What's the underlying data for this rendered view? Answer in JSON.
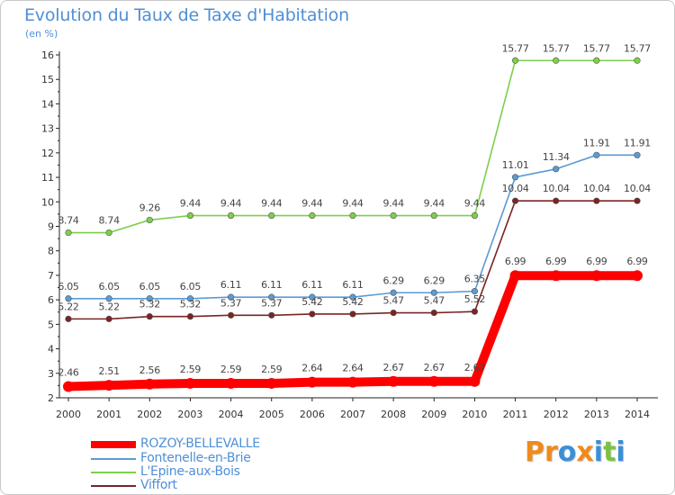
{
  "header": {
    "title": "Evolution du Taux de Taxe d'Habitation",
    "unit": "(en %)"
  },
  "logo": {
    "text": "Proxiti",
    "letters": [
      "P",
      "r",
      "o",
      "x",
      "i",
      "t",
      "i"
    ],
    "colors": [
      "#f08a1c",
      "#f08a1c",
      "#3b8fd8",
      "#f08a1c",
      "#3b8fd8",
      "#7cc242",
      "#3b8fd8"
    ]
  },
  "chart_data": {
    "type": "line",
    "title": "Evolution du Taux de Taxe d'Habitation",
    "ylabel": "(en %)",
    "xlabel": "",
    "x": [
      "2000",
      "2001",
      "2002",
      "2003",
      "2004",
      "2005",
      "2006",
      "2007",
      "2008",
      "2009",
      "2010",
      "2011",
      "2012",
      "2013",
      "2014"
    ],
    "ylim": [
      2,
      16
    ],
    "yticks": [
      "2",
      "3",
      "4",
      "5",
      "6",
      "7",
      "8",
      "9",
      "10",
      "11",
      "12",
      "13",
      "14",
      "15",
      "16"
    ],
    "grid": false,
    "legend": "bottom-left",
    "series": [
      {
        "name": "ROZOY-BELLEVALLE",
        "color": "#ff0000",
        "values": [
          2.46,
          2.51,
          2.56,
          2.59,
          2.59,
          2.59,
          2.64,
          2.64,
          2.67,
          2.67,
          2.67,
          6.99,
          6.99,
          6.99,
          6.99
        ],
        "labels": [
          "2.46",
          "2.51",
          "2.56",
          "2.59",
          "2.59",
          "2.59",
          "2.64",
          "2.64",
          "2.67",
          "2.67",
          "2.67",
          "6.99",
          "6.99",
          "6.99",
          "6.99"
        ]
      },
      {
        "name": "Fontenelle-en-Brie",
        "color": "#5b9bd5",
        "values": [
          6.05,
          6.05,
          6.05,
          6.05,
          6.11,
          6.11,
          6.11,
          6.11,
          6.29,
          6.29,
          6.35,
          11.01,
          11.34,
          11.91,
          11.91
        ],
        "labels": [
          "6.05",
          "6.05",
          "6.05",
          "6.05",
          "6.11",
          "6.11",
          "6.11",
          "6.11",
          "6.29",
          "6.29",
          "6.35",
          "11.01",
          "11.34",
          "11.91",
          "11.91"
        ]
      },
      {
        "name": "L'Epine-aux-Bois",
        "color": "#7dcf4b",
        "values": [
          8.74,
          8.74,
          9.26,
          9.44,
          9.44,
          9.44,
          9.44,
          9.44,
          9.44,
          9.44,
          9.44,
          15.77,
          15.77,
          15.77,
          15.77
        ],
        "labels": [
          "8.74",
          "8.74",
          "9.26",
          "9.44",
          "9.44",
          "9.44",
          "9.44",
          "9.44",
          "9.44",
          "9.44",
          "9.44",
          "15.77",
          "15.77",
          "15.77",
          "15.77"
        ]
      },
      {
        "name": "Viffort",
        "color": "#7a2424",
        "values": [
          5.22,
          5.22,
          5.32,
          5.32,
          5.37,
          5.37,
          5.42,
          5.42,
          5.47,
          5.47,
          5.52,
          10.04,
          10.04,
          10.04,
          10.04
        ],
        "labels": [
          "5.22",
          "5.22",
          "5.32",
          "5.32",
          "5.37",
          "5.37",
          "5.42",
          "5.42",
          "5.47",
          "5.47",
          "5.52",
          "10.04",
          "10.04",
          "10.04",
          "10.04"
        ]
      }
    ]
  }
}
